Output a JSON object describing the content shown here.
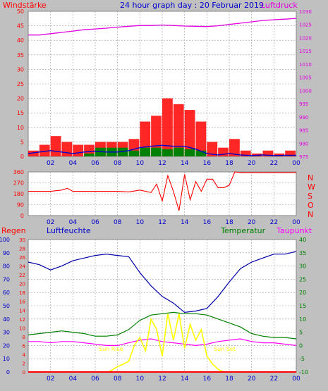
{
  "colors": {
    "background": "#c0c0c0",
    "plot_background": "#ffffff",
    "grid": "#9a9a9a",
    "wind": "#ff0000",
    "gust_average": "#0000cc",
    "pressure": "#e000e0",
    "direction": "#ff0000",
    "humidity": "#0000aa",
    "temperature": "#008000",
    "dewpoint": "#ff00ff",
    "sun": "#ffff00",
    "rain": "#ff0000",
    "label_blue": "#0000cc",
    "label_green": "#008000",
    "label_red": "#ff0000"
  },
  "chart_data": [
    {
      "type": "line",
      "title": "24 hour graph day : 20 Februar 2019",
      "left_label": "Windstärke",
      "right_label": "Luftdruck",
      "x_ticks": [
        "02",
        "04",
        "06",
        "08",
        "10",
        "12",
        "14",
        "16",
        "18",
        "20",
        "22",
        "00"
      ],
      "x_range_hours": [
        0,
        24
      ],
      "left_ticks": [
        "0",
        "5",
        "10",
        "15",
        "20",
        "25",
        "30",
        "35",
        "40",
        "45",
        "50"
      ],
      "left_range": [
        0,
        50
      ],
      "right_ticks": [
        "975",
        "980",
        "985",
        "990",
        "995",
        "1000",
        "1005",
        "1010",
        "1015",
        "1020",
        "1025",
        "1030"
      ],
      "right_range": [
        975,
        1030
      ],
      "grid": true,
      "series": [
        {
          "name": "Luftdruck",
          "axis": "right",
          "x": [
            0,
            1,
            2,
            3,
            4,
            5,
            6,
            7,
            8,
            9,
            10,
            11,
            12,
            13,
            14,
            15,
            16,
            17,
            18,
            19,
            20,
            21,
            22,
            23,
            24
          ],
          "values": [
            1021,
            1021,
            1021.5,
            1022,
            1022.5,
            1023,
            1023.3,
            1023.6,
            1024,
            1024.3,
            1024.6,
            1024.6,
            1024.8,
            1024.6,
            1024.4,
            1024.3,
            1024.2,
            1024.5,
            1025,
            1025.5,
            1026,
            1026.5,
            1026.8,
            1027,
            1027.3
          ]
        },
        {
          "name": "Wind",
          "axis": "left",
          "x": [
            0,
            1,
            2,
            3,
            4,
            5,
            6,
            7,
            8,
            9,
            10,
            11,
            12,
            13,
            14,
            15,
            16,
            17,
            18,
            19,
            20,
            21,
            22,
            23,
            24
          ],
          "values": [
            2,
            4,
            7,
            5,
            4,
            4,
            5,
            5,
            5,
            6,
            12,
            14,
            20,
            18,
            16,
            12,
            5,
            3,
            6,
            2,
            1,
            2,
            1,
            2,
            2
          ]
        },
        {
          "name": "Mittel",
          "axis": "left",
          "x": [
            0,
            1,
            2,
            3,
            4,
            5,
            6,
            7,
            8,
            9,
            10,
            11,
            12,
            13,
            14,
            15,
            16,
            17,
            18,
            19,
            20,
            21,
            22,
            23,
            24
          ],
          "values": [
            1,
            1.5,
            2,
            1.5,
            1,
            1.5,
            1.8,
            1.5,
            1.5,
            2,
            3,
            3.5,
            3.8,
            3.5,
            3.5,
            2.5,
            1,
            0.5,
            1,
            0.5,
            0.3,
            0.5,
            0.3,
            0.4,
            0.4
          ]
        },
        {
          "name": "Böen",
          "axis": "left",
          "x": [
            0,
            1,
            2,
            3,
            4,
            5,
            6,
            7,
            8,
            9,
            10,
            11,
            12,
            13,
            14,
            15,
            16,
            17,
            18,
            19,
            20,
            21,
            22,
            23,
            24
          ],
          "values": [
            0,
            0,
            0,
            0,
            0,
            1,
            3,
            3,
            3,
            2,
            3,
            3,
            2.5,
            3,
            2.5,
            2,
            0,
            0,
            0,
            0,
            0,
            0,
            0,
            0,
            0
          ]
        }
      ]
    },
    {
      "type": "line",
      "right_label_letters": [
        "N",
        "W",
        "S",
        "O",
        "N"
      ],
      "x_ticks": [
        "02",
        "04",
        "06",
        "08",
        "10",
        "12",
        "14",
        "16",
        "18",
        "20",
        "22",
        "00"
      ],
      "left_ticks": [
        "0",
        "90",
        "180",
        "270",
        "360"
      ],
      "left_range": [
        0,
        360
      ],
      "grid": true,
      "series": [
        {
          "name": "Windrichtung",
          "x": [
            0,
            1,
            2,
            3,
            3.5,
            4,
            5,
            6,
            7,
            8,
            9,
            10,
            11,
            11.5,
            12,
            12.5,
            13,
            13.5,
            14,
            14.5,
            15,
            15.5,
            16,
            16.5,
            17,
            17.5,
            18,
            18.5,
            19,
            20,
            21,
            22,
            23,
            24
          ],
          "values": [
            200,
            200,
            200,
            210,
            225,
            200,
            200,
            200,
            200,
            200,
            195,
            210,
            190,
            260,
            120,
            330,
            200,
            40,
            340,
            130,
            280,
            200,
            300,
            300,
            230,
            230,
            250,
            360,
            355,
            355,
            355,
            355,
            355,
            355
          ]
        }
      ]
    },
    {
      "type": "line",
      "labels": {
        "rain": "Regen",
        "humidity": "Luftfeuchte",
        "temperature": "Temperatur",
        "dewpoint": "Taupunkt",
        "sunrise": "Sun Rise",
        "sunset": "Sun Set"
      },
      "x_ticks": [
        "02",
        "04",
        "06",
        "08",
        "10",
        "12",
        "14",
        "16",
        "18",
        "20",
        "22",
        "00"
      ],
      "humidity_ticks": [
        "0",
        "10",
        "20",
        "30",
        "40",
        "50",
        "60",
        "70",
        "80",
        "90",
        "100"
      ],
      "rain_ticks": [
        "0",
        "2",
        "4",
        "6",
        "8",
        "10",
        "12",
        "14",
        "16",
        "18",
        "20",
        "22",
        "24",
        "26",
        "28",
        "30"
      ],
      "temperature_ticks": [
        "-10",
        "-5",
        "0",
        "5",
        "10",
        "15",
        "20",
        "25",
        "30",
        "35",
        "40"
      ],
      "humidity_range": [
        0,
        100
      ],
      "temperature_range": [
        -10,
        40
      ],
      "grid": true,
      "sunrise_hour": 7.2,
      "sunset_hour": 17.5,
      "series": [
        {
          "name": "Luftfeuchte",
          "axis": "humidity",
          "x": [
            0,
            1,
            2,
            3,
            4,
            5,
            6,
            7,
            8,
            9,
            10,
            11,
            12,
            13,
            14,
            15,
            16,
            17,
            18,
            19,
            20,
            21,
            22,
            23,
            24
          ],
          "values": [
            83,
            81,
            77,
            80,
            84,
            86,
            88,
            89,
            88,
            87,
            75,
            65,
            57,
            52,
            45,
            46,
            48,
            57,
            68,
            78,
            83,
            86,
            89,
            89,
            91
          ]
        },
        {
          "name": "Temperatur",
          "axis": "temperature",
          "x": [
            0,
            1,
            2,
            3,
            4,
            5,
            6,
            7,
            8,
            9,
            10,
            11,
            12,
            13,
            14,
            15,
            16,
            17,
            18,
            19,
            20,
            21,
            22,
            23,
            24
          ],
          "values": [
            4,
            4.5,
            5,
            5.5,
            5,
            4.5,
            3.5,
            3.5,
            4,
            6,
            9.5,
            11.5,
            12,
            12.5,
            12,
            12,
            11.5,
            10,
            8.5,
            7,
            4.5,
            3.5,
            3,
            3,
            2.5
          ]
        },
        {
          "name": "Taupunkt",
          "axis": "temperature",
          "x": [
            0,
            1,
            2,
            3,
            4,
            5,
            6,
            7,
            8,
            9,
            10,
            11,
            12,
            13,
            14,
            15,
            16,
            17,
            18,
            19,
            20,
            21,
            22,
            23,
            24
          ],
          "values": [
            1.5,
            1.5,
            1,
            1.5,
            1.5,
            1,
            0.5,
            0,
            0,
            1,
            2,
            2.5,
            1.5,
            1,
            0.5,
            0,
            0.5,
            1.5,
            2,
            2.5,
            1.5,
            1,
            1,
            0.5,
            0
          ]
        },
        {
          "name": "Sonne",
          "axis": "temperature",
          "x": [
            7.2,
            8,
            9,
            9.5,
            10,
            10.5,
            11,
            11.5,
            12,
            12.5,
            13,
            13.5,
            14,
            14.5,
            15,
            15.5,
            16,
            16.5,
            17,
            17.5
          ],
          "values": [
            -10,
            -8,
            -6,
            0,
            3,
            -2,
            10,
            6,
            -4,
            12,
            2,
            12,
            -1,
            8,
            2,
            6,
            -4,
            -7,
            -9,
            -10
          ]
        },
        {
          "name": "Regen",
          "axis": "rain",
          "x": [
            0,
            24
          ],
          "values": [
            0,
            0
          ]
        }
      ]
    }
  ]
}
